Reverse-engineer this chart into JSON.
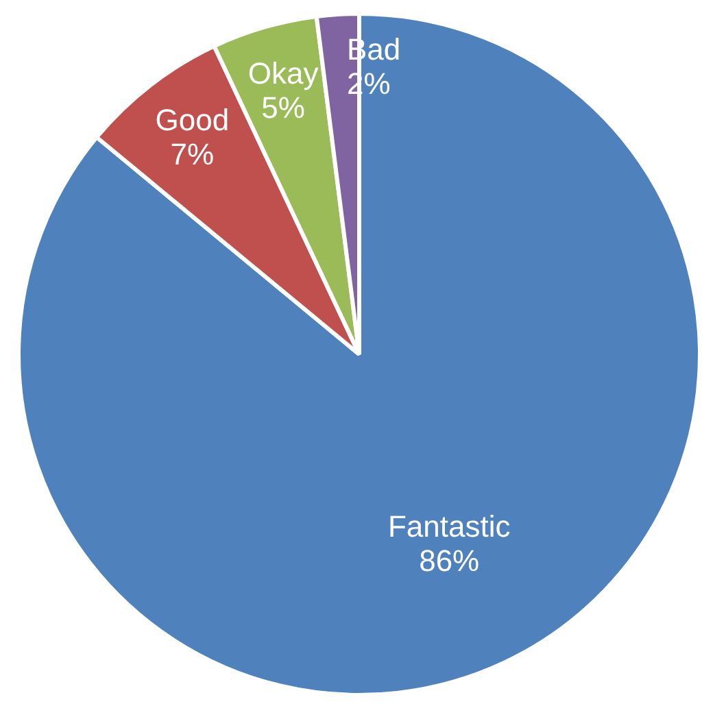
{
  "chart_data": {
    "type": "pie",
    "categories": [
      "Fantastic",
      "Good",
      "Okay",
      "Bad"
    ],
    "values": [
      86,
      7,
      5,
      2
    ],
    "colors": [
      "#4f81bd",
      "#c0504d",
      "#9bbb59",
      "#8064a2"
    ],
    "value_labels": [
      "86%",
      "7%",
      "5%",
      "2%"
    ],
    "legend": false
  }
}
